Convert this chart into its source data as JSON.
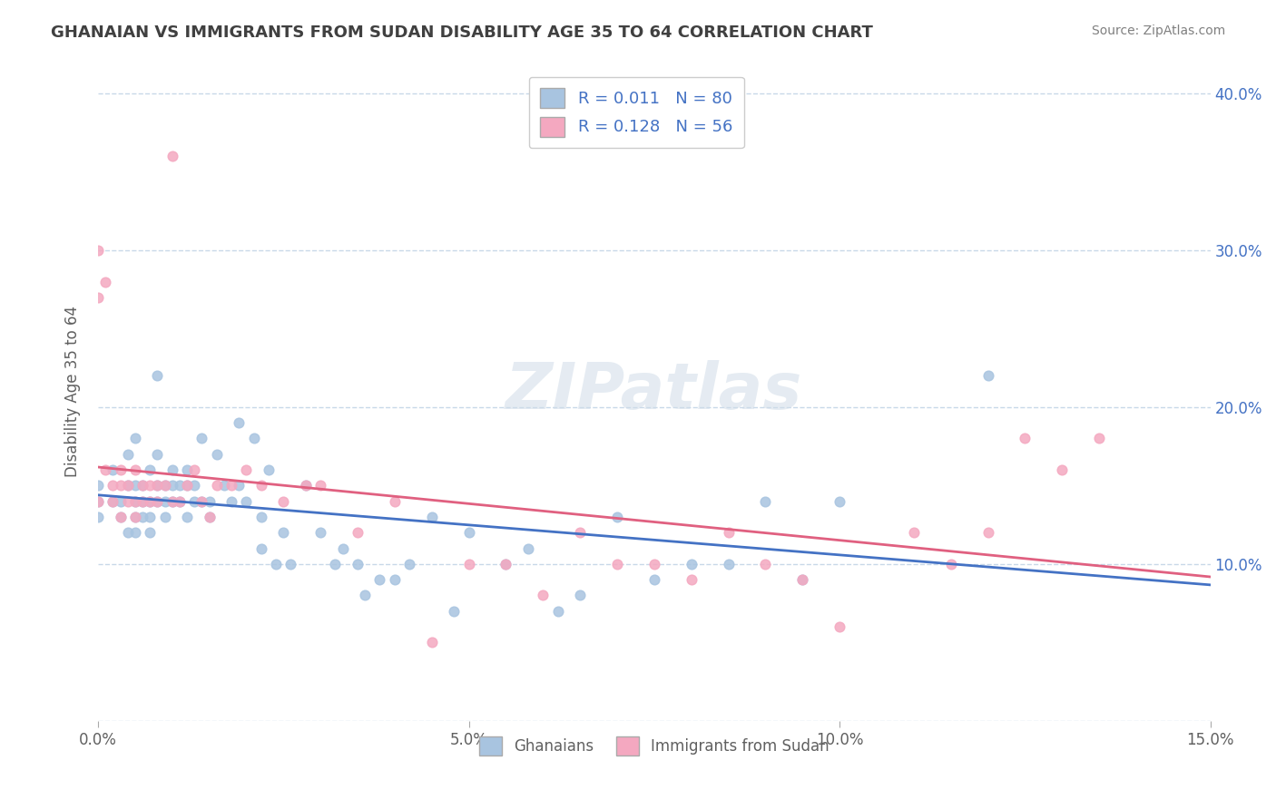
{
  "title": "GHANAIAN VS IMMIGRANTS FROM SUDAN DISABILITY AGE 35 TO 64 CORRELATION CHART",
  "source": "Source: ZipAtlas.com",
  "xlabel": "",
  "ylabel": "Disability Age 35 to 64",
  "xlim": [
    0.0,
    0.15
  ],
  "ylim": [
    0.0,
    0.42
  ],
  "x_ticks": [
    0.0,
    0.05,
    0.1,
    0.15
  ],
  "x_tick_labels": [
    "0.0%",
    "5.0%",
    "10.0%",
    "15.0%"
  ],
  "y_ticks": [
    0.0,
    0.1,
    0.2,
    0.3,
    0.4
  ],
  "y_tick_labels": [
    "",
    "10.0%",
    "20.0%",
    "30.0%",
    "40.0%"
  ],
  "blue_color": "#a8c4e0",
  "pink_color": "#f4a8c0",
  "blue_line_color": "#4472c4",
  "pink_line_color": "#e06080",
  "title_color": "#404040",
  "legend_text_color": "#4472c4",
  "watermark": "ZIPatlas",
  "R_blue": 0.011,
  "N_blue": 80,
  "R_pink": 0.128,
  "N_pink": 56,
  "blue_scatter_x": [
    0.0,
    0.0,
    0.0,
    0.002,
    0.002,
    0.003,
    0.003,
    0.004,
    0.004,
    0.004,
    0.005,
    0.005,
    0.005,
    0.005,
    0.005,
    0.006,
    0.006,
    0.006,
    0.007,
    0.007,
    0.007,
    0.007,
    0.008,
    0.008,
    0.008,
    0.008,
    0.009,
    0.009,
    0.009,
    0.01,
    0.01,
    0.01,
    0.011,
    0.011,
    0.012,
    0.012,
    0.012,
    0.013,
    0.013,
    0.014,
    0.014,
    0.015,
    0.015,
    0.016,
    0.017,
    0.018,
    0.019,
    0.019,
    0.02,
    0.021,
    0.022,
    0.022,
    0.023,
    0.024,
    0.025,
    0.026,
    0.028,
    0.03,
    0.032,
    0.033,
    0.035,
    0.036,
    0.038,
    0.04,
    0.042,
    0.045,
    0.048,
    0.05,
    0.055,
    0.058,
    0.062,
    0.065,
    0.07,
    0.075,
    0.08,
    0.085,
    0.09,
    0.095,
    0.1,
    0.12
  ],
  "blue_scatter_y": [
    0.14,
    0.13,
    0.15,
    0.14,
    0.16,
    0.13,
    0.14,
    0.12,
    0.15,
    0.17,
    0.13,
    0.14,
    0.15,
    0.12,
    0.18,
    0.14,
    0.13,
    0.15,
    0.14,
    0.16,
    0.12,
    0.13,
    0.14,
    0.15,
    0.17,
    0.22,
    0.14,
    0.15,
    0.13,
    0.14,
    0.15,
    0.16,
    0.15,
    0.14,
    0.13,
    0.15,
    0.16,
    0.14,
    0.15,
    0.18,
    0.14,
    0.13,
    0.14,
    0.17,
    0.15,
    0.14,
    0.19,
    0.15,
    0.14,
    0.18,
    0.11,
    0.13,
    0.16,
    0.1,
    0.12,
    0.1,
    0.15,
    0.12,
    0.1,
    0.11,
    0.1,
    0.08,
    0.09,
    0.09,
    0.1,
    0.13,
    0.07,
    0.12,
    0.1,
    0.11,
    0.07,
    0.08,
    0.13,
    0.09,
    0.1,
    0.1,
    0.14,
    0.09,
    0.14,
    0.22
  ],
  "pink_scatter_x": [
    0.0,
    0.0,
    0.0,
    0.001,
    0.001,
    0.002,
    0.002,
    0.003,
    0.003,
    0.003,
    0.004,
    0.004,
    0.005,
    0.005,
    0.005,
    0.006,
    0.006,
    0.007,
    0.007,
    0.008,
    0.008,
    0.009,
    0.01,
    0.01,
    0.011,
    0.012,
    0.013,
    0.014,
    0.015,
    0.016,
    0.018,
    0.02,
    0.022,
    0.025,
    0.028,
    0.03,
    0.035,
    0.04,
    0.045,
    0.05,
    0.055,
    0.06,
    0.065,
    0.07,
    0.075,
    0.08,
    0.085,
    0.09,
    0.095,
    0.1,
    0.11,
    0.115,
    0.12,
    0.125,
    0.13,
    0.135
  ],
  "pink_scatter_y": [
    0.14,
    0.3,
    0.27,
    0.16,
    0.28,
    0.15,
    0.14,
    0.13,
    0.15,
    0.16,
    0.14,
    0.15,
    0.13,
    0.16,
    0.14,
    0.15,
    0.14,
    0.14,
    0.15,
    0.14,
    0.15,
    0.15,
    0.14,
    0.36,
    0.14,
    0.15,
    0.16,
    0.14,
    0.13,
    0.15,
    0.15,
    0.16,
    0.15,
    0.14,
    0.15,
    0.15,
    0.12,
    0.14,
    0.05,
    0.1,
    0.1,
    0.08,
    0.12,
    0.1,
    0.1,
    0.09,
    0.12,
    0.1,
    0.09,
    0.06,
    0.12,
    0.1,
    0.12,
    0.18,
    0.16,
    0.18
  ],
  "legend_label_blue": "Ghanaians",
  "legend_label_pink": "Immigrants from Sudan",
  "bg_color": "#ffffff",
  "grid_color": "#c8d8e8",
  "right_tick_color": "#4472c4"
}
